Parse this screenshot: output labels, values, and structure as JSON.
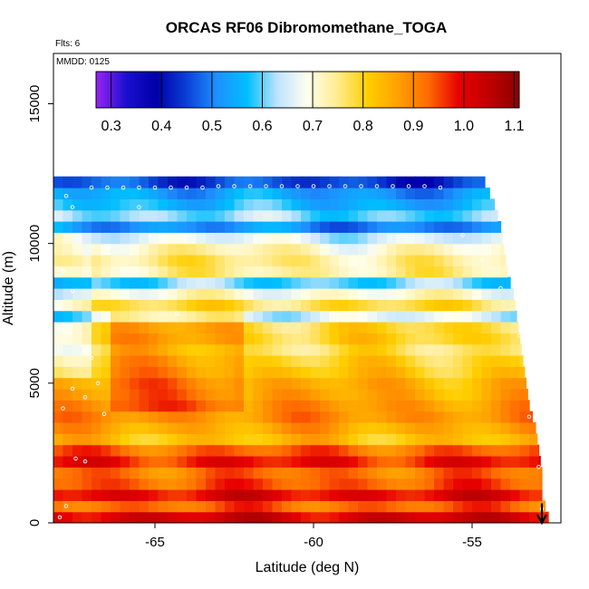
{
  "chart_data": {
    "type": "heatmap",
    "title": "ORCAS RF06 Dibromomethane_TOGA",
    "xlabel": "Latitude (deg N)",
    "ylabel": "Altitude (m)",
    "xlim": [
      -68.2,
      -52.2
    ],
    "ylim": [
      0,
      16800
    ],
    "x_ticks": [
      -65,
      -60,
      -55
    ],
    "x_tick_labels": [
      "-65",
      "-60",
      "-55"
    ],
    "y_ticks": [
      0,
      5000,
      10000,
      15000
    ],
    "y_tick_labels": [
      "0",
      "5000",
      "10000",
      "15000"
    ],
    "annotations": {
      "flights": "Flts: 6",
      "date": "MMDD: 0125"
    },
    "colorbar": {
      "ticks": [
        0.3,
        0.4,
        0.5,
        0.6,
        0.7,
        0.8,
        0.9,
        1.0,
        1.1
      ],
      "tick_labels": [
        "0.3",
        "0.4",
        "0.5",
        "0.6",
        "0.7",
        "0.8",
        "0.9",
        "1.0",
        "1.1"
      ],
      "range": [
        0.27,
        1.11
      ],
      "colors": [
        "#9a24f6",
        "#1a0fcf",
        "#0000a8",
        "#0a40d8",
        "#1e90ff",
        "#00bfff",
        "#bfe3ff",
        "#ffffee",
        "#ffeb8c",
        "#ffce00",
        "#ffa000",
        "#ff6a00",
        "#e80000",
        "#c00000",
        "#8b0000"
      ]
    },
    "layers": [
      {
        "alt": 12000,
        "v": 0.47
      },
      {
        "alt": 11600,
        "v": 0.55
      },
      {
        "alt": 11200,
        "v": 0.58
      },
      {
        "alt": 10800,
        "v": 0.63
      },
      {
        "alt": 10400,
        "v": 0.53
      },
      {
        "alt": 10000,
        "v": 0.68
      },
      {
        "alt": 9600,
        "v": 0.74
      },
      {
        "alt": 9200,
        "v": 0.77
      },
      {
        "alt": 8800,
        "v": 0.74
      },
      {
        "alt": 8400,
        "v": 0.6
      },
      {
        "alt": 8000,
        "v": 0.7
      },
      {
        "alt": 7600,
        "v": 0.78
      },
      {
        "alt": 7200,
        "v": 0.66
      },
      {
        "alt": 6800,
        "v": 0.79
      },
      {
        "alt": 6400,
        "v": 0.8
      },
      {
        "alt": 6000,
        "v": 0.77
      },
      {
        "alt": 5600,
        "v": 0.8
      },
      {
        "alt": 5200,
        "v": 0.82
      },
      {
        "alt": 4800,
        "v": 0.85
      },
      {
        "alt": 4400,
        "v": 0.86
      },
      {
        "alt": 4000,
        "v": 0.88
      },
      {
        "alt": 3600,
        "v": 0.89
      },
      {
        "alt": 3200,
        "v": 0.86
      },
      {
        "alt": 2800,
        "v": 0.83
      },
      {
        "alt": 2400,
        "v": 0.93
      },
      {
        "alt": 2000,
        "v": 0.98
      },
      {
        "alt": 1600,
        "v": 0.92
      },
      {
        "alt": 1200,
        "v": 0.94
      },
      {
        "alt": 800,
        "v": 1.0
      },
      {
        "alt": 400,
        "v": 0.93
      },
      {
        "alt": 0,
        "v": 1.02
      }
    ],
    "edge": [
      {
        "alt": 12000,
        "lat": -54.6
      },
      {
        "alt": 11200,
        "lat": -54.3
      },
      {
        "alt": 10400,
        "lat": -54.1
      },
      {
        "alt": 9600,
        "lat": -54.0
      },
      {
        "alt": 8800,
        "lat": -53.9
      },
      {
        "alt": 8000,
        "lat": -53.7
      },
      {
        "alt": 7200,
        "lat": -53.6
      },
      {
        "alt": 6400,
        "lat": -53.5
      },
      {
        "alt": 5600,
        "lat": -53.4
      },
      {
        "alt": 4800,
        "lat": -53.3
      },
      {
        "alt": 4000,
        "lat": -53.2
      },
      {
        "alt": 3200,
        "lat": -53.0
      },
      {
        "alt": 2400,
        "lat": -52.9
      },
      {
        "alt": 1600,
        "lat": -52.8
      },
      {
        "alt": 800,
        "lat": -52.8
      },
      {
        "alt": 0,
        "lat": -52.6
      }
    ],
    "samples": [
      {
        "lat": -67.0,
        "alt": 12000
      },
      {
        "lat": -66.5,
        "alt": 12000
      },
      {
        "lat": -66.0,
        "alt": 12000
      },
      {
        "lat": -65.5,
        "alt": 12000
      },
      {
        "lat": -65.0,
        "alt": 12000
      },
      {
        "lat": -64.5,
        "alt": 12000
      },
      {
        "lat": -64.0,
        "alt": 12000
      },
      {
        "lat": -63.5,
        "alt": 12000
      },
      {
        "lat": -63.0,
        "alt": 12050
      },
      {
        "lat": -62.5,
        "alt": 12050
      },
      {
        "lat": -62.0,
        "alt": 12050
      },
      {
        "lat": -61.5,
        "alt": 12050
      },
      {
        "lat": -61.0,
        "alt": 12050
      },
      {
        "lat": -60.5,
        "alt": 12050
      },
      {
        "lat": -60.0,
        "alt": 12050
      },
      {
        "lat": -59.5,
        "alt": 12050
      },
      {
        "lat": -59.0,
        "alt": 12050
      },
      {
        "lat": -58.5,
        "alt": 12050
      },
      {
        "lat": -58.0,
        "alt": 12050
      },
      {
        "lat": -57.5,
        "alt": 12050
      },
      {
        "lat": -57.0,
        "alt": 12050
      },
      {
        "lat": -56.5,
        "alt": 12050
      },
      {
        "lat": -56.0,
        "alt": 12000
      },
      {
        "lat": -67.8,
        "alt": 11700
      },
      {
        "lat": -67.6,
        "alt": 11300
      },
      {
        "lat": -65.5,
        "alt": 11300
      },
      {
        "lat": -64.7,
        "alt": 10300
      },
      {
        "lat": -67.9,
        "alt": 9000
      },
      {
        "lat": -67.6,
        "alt": 8300
      },
      {
        "lat": -64.3,
        "alt": 7500
      },
      {
        "lat": -67.2,
        "alt": 6200
      },
      {
        "lat": -67.0,
        "alt": 5900
      },
      {
        "lat": -66.8,
        "alt": 5000
      },
      {
        "lat": -67.6,
        "alt": 4800
      },
      {
        "lat": -67.2,
        "alt": 4500
      },
      {
        "lat": -66.6,
        "alt": 3900
      },
      {
        "lat": -67.9,
        "alt": 4100
      },
      {
        "lat": -67.5,
        "alt": 2300
      },
      {
        "lat": -67.2,
        "alt": 2200
      },
      {
        "lat": -67.8,
        "alt": 600
      },
      {
        "lat": -68.0,
        "alt": 200
      },
      {
        "lat": -54.1,
        "alt": 8400
      },
      {
        "lat": -54.7,
        "alt": 9400
      },
      {
        "lat": -55.3,
        "alt": 10300
      },
      {
        "lat": -53.5,
        "alt": 6700
      },
      {
        "lat": -53.2,
        "alt": 3800
      },
      {
        "lat": -52.9,
        "alt": 2000
      },
      {
        "lat": -52.8,
        "alt": 500
      }
    ],
    "arrow": {
      "lat": -52.8,
      "alt_from": 700,
      "alt_to": 0
    }
  }
}
